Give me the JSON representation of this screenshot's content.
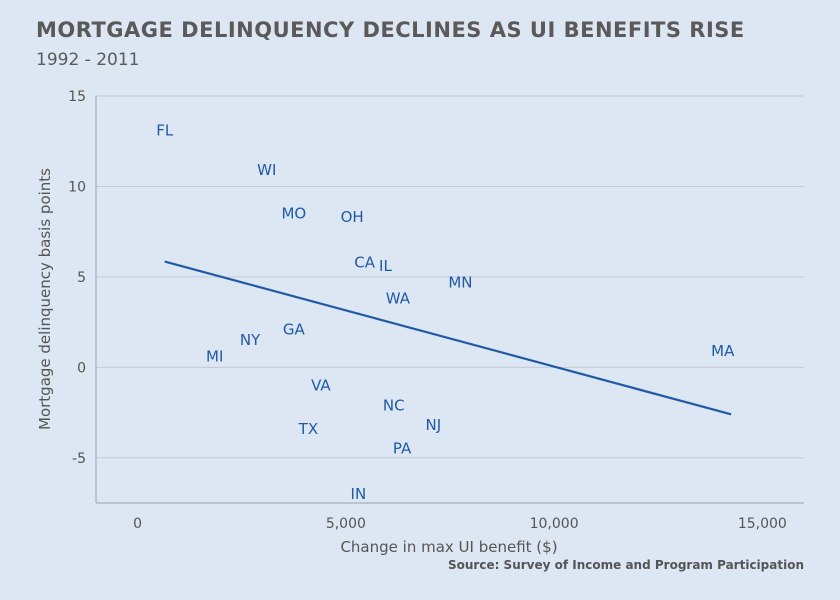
{
  "title": "MORTGAGE DELINQUENCY DECLINES AS UI BENEFITS RISE",
  "subtitle": "1992 - 2011",
  "source": "Source: Survey of Income and Program Participation",
  "colors": {
    "background": "#dde6f3",
    "points": "#1f5aa6",
    "trendline": "#1f5aa6",
    "grid": "#c2cbd6",
    "text": "#5a5a5a"
  },
  "chart_data": {
    "type": "scatter",
    "title": "MORTGAGE DELINQUENCY DECLINES AS UI BENEFITS RISE",
    "subtitle": "1992 - 2011",
    "xlabel": "Change in max UI benefit ($)",
    "ylabel": "Mortgage delinquency basis points",
    "xlim": [
      -1000,
      16000
    ],
    "ylim": [
      -7.5,
      15
    ],
    "xticks": [
      0,
      5000,
      10000,
      15000
    ],
    "xtick_labels": [
      "0",
      "5,000",
      "10,000",
      "15,000"
    ],
    "yticks": [
      -5,
      0,
      5,
      10,
      15
    ],
    "ytick_labels": [
      "-5",
      "0",
      "5",
      "10",
      "15"
    ],
    "grid": "horizontal",
    "points": [
      {
        "label": "FL",
        "x": 650,
        "y": 13.1
      },
      {
        "label": "WI",
        "x": 3100,
        "y": 10.9
      },
      {
        "label": "MO",
        "x": 3750,
        "y": 8.5
      },
      {
        "label": "OH",
        "x": 5150,
        "y": 8.3
      },
      {
        "label": "CA",
        "x": 5450,
        "y": 5.8
      },
      {
        "label": "IL",
        "x": 5950,
        "y": 5.6
      },
      {
        "label": "MN",
        "x": 7750,
        "y": 4.7
      },
      {
        "label": "WA",
        "x": 6250,
        "y": 3.8
      },
      {
        "label": "GA",
        "x": 3750,
        "y": 2.1
      },
      {
        "label": "NY",
        "x": 2700,
        "y": 1.5
      },
      {
        "label": "MI",
        "x": 1850,
        "y": 0.6
      },
      {
        "label": "MA",
        "x": 14050,
        "y": 0.9
      },
      {
        "label": "VA",
        "x": 4400,
        "y": -1.0
      },
      {
        "label": "NC",
        "x": 6150,
        "y": -2.1
      },
      {
        "label": "NJ",
        "x": 7100,
        "y": -3.2
      },
      {
        "label": "TX",
        "x": 4100,
        "y": -3.4
      },
      {
        "label": "PA",
        "x": 6350,
        "y": -4.5
      },
      {
        "label": "IN",
        "x": 5300,
        "y": -7.0
      }
    ],
    "trendline": {
      "x": [
        650,
        14250
      ],
      "y": [
        5.85,
        -2.6
      ]
    }
  }
}
